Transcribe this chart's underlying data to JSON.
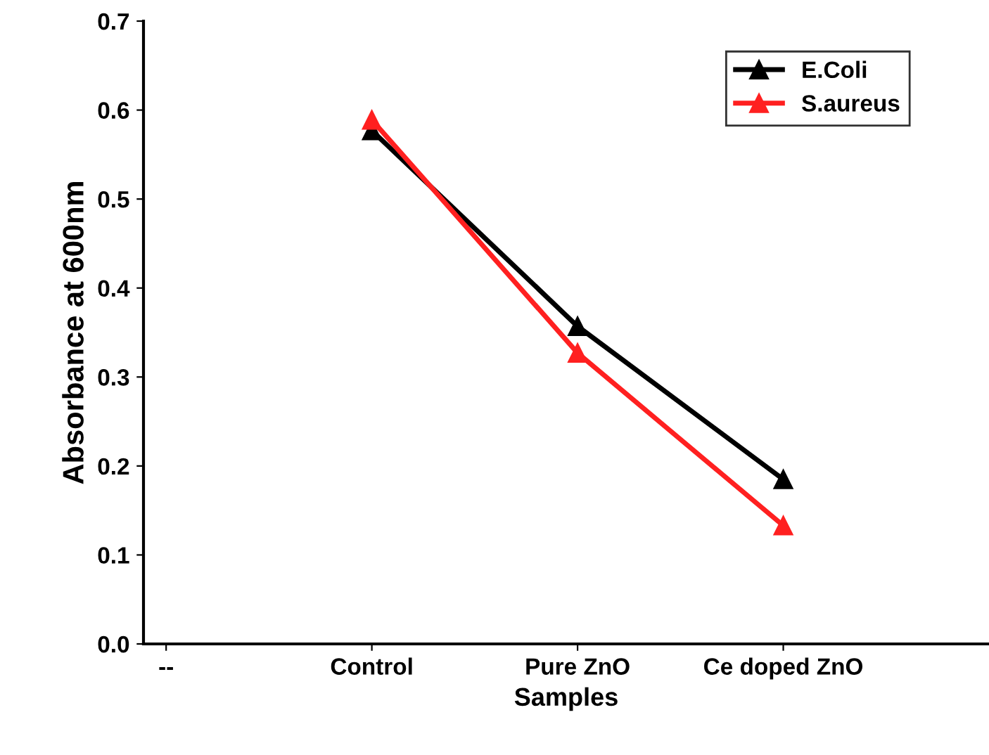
{
  "chart_data": {
    "type": "line",
    "xlabel": "Samples",
    "ylabel": "Absorbance at 600nm",
    "categories": [
      "--",
      "Control",
      "Pure ZnO",
      "Ce doped ZnO"
    ],
    "series": [
      {
        "name": "E.Coli",
        "color": "#000000",
        "values": [
          null,
          0.577,
          0.357,
          0.185
        ]
      },
      {
        "name": "S.aureus",
        "color": "#ff2020",
        "values": [
          null,
          0.589,
          0.327,
          0.133
        ]
      }
    ],
    "ylim": [
      0.0,
      0.7
    ],
    "yticks": [
      {
        "value": 0,
        "label": "0.0"
      },
      0.1,
      0.2,
      0.3,
      0.4,
      0.5,
      0.6,
      0.7
    ],
    "marker": "triangle",
    "line_style": "solid",
    "legend": "top right",
    "grid": false
  }
}
